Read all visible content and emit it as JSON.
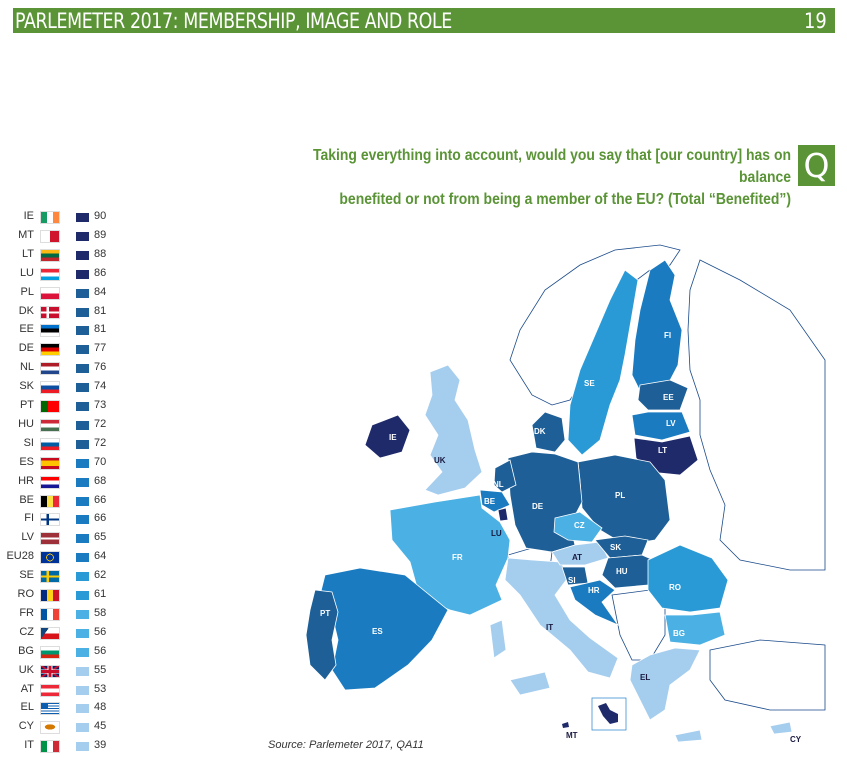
{
  "header": {
    "title": "PARLEMETER 2017: MEMBERSHIP, IMAGE AND ROLE",
    "page_number": "19"
  },
  "question": {
    "line1": "Taking everything into account, would you say that [our country] has on balance",
    "line2": "benefited or not from being a member of the EU? (Total “Benefited”)",
    "icon_letter": "Q"
  },
  "colors": {
    "accent": "#5a9436",
    "band_90": "#1f2a6b",
    "band_80": "#1d5f96",
    "band_70": "#1b7bc0",
    "band_60": "#2a9ad6",
    "band_50": "#4bb0e4",
    "band_low": "#a5cdee"
  },
  "legend": [
    {
      "code": "IE",
      "value": 90,
      "color": "#1f2a6b",
      "flag": [
        "v",
        "#169b62",
        "#ffffff",
        "#ff883e"
      ]
    },
    {
      "code": "MT",
      "value": 89,
      "color": "#1f2a6b",
      "flag": [
        "v",
        "#ffffff",
        "#cf142b"
      ]
    },
    {
      "code": "LT",
      "value": 88,
      "color": "#1f2a6b",
      "flag": [
        "h",
        "#fdb913",
        "#006a44",
        "#c1272d"
      ]
    },
    {
      "code": "LU",
      "value": 86,
      "color": "#1f2a6b",
      "flag": [
        "h",
        "#ed2939",
        "#ffffff",
        "#00a1de"
      ]
    },
    {
      "code": "PL",
      "value": 84,
      "color": "#1d5f96",
      "flag": [
        "h",
        "#ffffff",
        "#dc143c"
      ]
    },
    {
      "code": "DK",
      "value": 81,
      "color": "#1d5f96",
      "flag": [
        "nordic",
        "#c8102e",
        "#ffffff"
      ]
    },
    {
      "code": "EE",
      "value": 81,
      "color": "#1d5f96",
      "flag": [
        "h",
        "#0072ce",
        "#000000",
        "#ffffff"
      ]
    },
    {
      "code": "DE",
      "value": 77,
      "color": "#1d5f96",
      "flag": [
        "h",
        "#000000",
        "#dd0000",
        "#ffce00"
      ]
    },
    {
      "code": "NL",
      "value": 76,
      "color": "#1d5f96",
      "flag": [
        "h",
        "#ae1c28",
        "#ffffff",
        "#21468b"
      ]
    },
    {
      "code": "SK",
      "value": 74,
      "color": "#1d5f96",
      "flag": [
        "h",
        "#ffffff",
        "#0b4ea2",
        "#ee1c25"
      ]
    },
    {
      "code": "PT",
      "value": 73,
      "color": "#1d5f96",
      "flag": [
        "vs",
        "#006600",
        "#ff0000"
      ]
    },
    {
      "code": "HU",
      "value": 72,
      "color": "#1d5f96",
      "flag": [
        "h",
        "#ce2939",
        "#ffffff",
        "#477050"
      ]
    },
    {
      "code": "SI",
      "value": 72,
      "color": "#1d5f96",
      "flag": [
        "h",
        "#ffffff",
        "#005da4",
        "#ed1c24"
      ]
    },
    {
      "code": "ES",
      "value": 70,
      "color": "#1b7bc0",
      "flag": [
        "es",
        "#c60b1e",
        "#ffc400"
      ]
    },
    {
      "code": "HR",
      "value": 68,
      "color": "#1b7bc0",
      "flag": [
        "h",
        "#ff0000",
        "#ffffff",
        "#171796"
      ]
    },
    {
      "code": "BE",
      "value": 66,
      "color": "#1b7bc0",
      "flag": [
        "v",
        "#000000",
        "#fae042",
        "#ed2939"
      ]
    },
    {
      "code": "FI",
      "value": 66,
      "color": "#1b7bc0",
      "flag": [
        "nordic",
        "#ffffff",
        "#003580"
      ]
    },
    {
      "code": "LV",
      "value": 65,
      "color": "#1b7bc0",
      "flag": [
        "lv",
        "#9e3039",
        "#ffffff"
      ]
    },
    {
      "code": "EU28",
      "value": 64,
      "color": "#1b7bc0",
      "flag": [
        "eu",
        "#003399",
        "#ffcc00"
      ]
    },
    {
      "code": "SE",
      "value": 62,
      "color": "#2a9ad6",
      "flag": [
        "nordic",
        "#006aa7",
        "#fecc00"
      ]
    },
    {
      "code": "RO",
      "value": 61,
      "color": "#2a9ad6",
      "flag": [
        "v",
        "#002b7f",
        "#fcd116",
        "#ce1126"
      ]
    },
    {
      "code": "FR",
      "value": 58,
      "color": "#4bb0e4",
      "flag": [
        "v",
        "#0055a4",
        "#ffffff",
        "#ef4135"
      ]
    },
    {
      "code": "CZ",
      "value": 56,
      "color": "#4bb0e4",
      "flag": [
        "cz",
        "#ffffff",
        "#d7141a",
        "#11457e"
      ]
    },
    {
      "code": "BG",
      "value": 56,
      "color": "#4bb0e4",
      "flag": [
        "h",
        "#ffffff",
        "#00966e",
        "#d62612"
      ]
    },
    {
      "code": "UK",
      "value": 55,
      "color": "#a5cdee",
      "flag": [
        "uk",
        "#012169",
        "#ffffff",
        "#c8102e"
      ]
    },
    {
      "code": "AT",
      "value": 53,
      "color": "#a5cdee",
      "flag": [
        "h",
        "#ed2939",
        "#ffffff",
        "#ed2939"
      ]
    },
    {
      "code": "EL",
      "value": 48,
      "color": "#a5cdee",
      "flag": [
        "gr",
        "#0d5eaf",
        "#ffffff"
      ]
    },
    {
      "code": "CY",
      "value": 45,
      "color": "#a5cdee",
      "flag": [
        "cy",
        "#ffffff",
        "#d57800"
      ]
    },
    {
      "code": "IT",
      "value": 39,
      "color": "#a5cdee",
      "flag": [
        "v",
        "#009246",
        "#ffffff",
        "#ce2b37"
      ]
    }
  ],
  "source": "Source: Parlemeter 2017, QA11"
}
